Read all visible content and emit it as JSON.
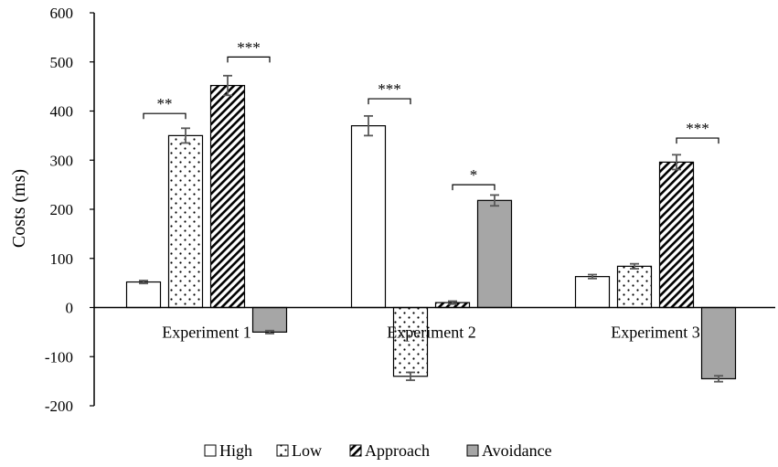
{
  "chart_data": {
    "type": "bar",
    "ylabel": "Costs (ms)",
    "xlabel": "",
    "ylim": [
      -200,
      600
    ],
    "yticks": [
      -200,
      -100,
      0,
      100,
      200,
      300,
      400,
      500,
      600
    ],
    "ytick_labels": [
      "-200",
      "-100",
      "0",
      "100",
      "200",
      "300",
      "400",
      "500",
      "600"
    ],
    "categories": [
      "Experiment 1",
      "Experiment 2",
      "Experiment 3"
    ],
    "series": [
      {
        "name": "High",
        "pattern": "white",
        "values": [
          52,
          370,
          63
        ],
        "errors": [
          3,
          20,
          4
        ]
      },
      {
        "name": "Low",
        "pattern": "dots",
        "values": [
          350,
          -140,
          84
        ],
        "errors": [
          15,
          8,
          5
        ]
      },
      {
        "name": "Approach",
        "pattern": "diagonal",
        "values": [
          452,
          10,
          296
        ],
        "errors": [
          20,
          3,
          15
        ]
      },
      {
        "name": "Avoidance",
        "pattern": "gray",
        "values": [
          -50,
          218,
          -145
        ],
        "errors": [
          3,
          11,
          6
        ]
      }
    ],
    "significance": [
      {
        "category": 0,
        "from_series": 0,
        "to_series": 1,
        "label": "**",
        "y": 395
      },
      {
        "category": 0,
        "from_series": 2,
        "to_series": 3,
        "label": "***",
        "y": 510
      },
      {
        "category": 1,
        "from_series": 0,
        "to_series": 1,
        "label": "***",
        "y": 425
      },
      {
        "category": 1,
        "from_series": 2,
        "to_series": 3,
        "label": "*",
        "y": 250
      },
      {
        "category": 2,
        "from_series": 2,
        "to_series": 3,
        "label": "***",
        "y": 345
      }
    ],
    "legend_position": "bottom",
    "grid": false,
    "colors": {
      "white": "#ffffff",
      "gray": "#a6a6a6",
      "stroke": "#000000",
      "error": "#595959"
    }
  }
}
